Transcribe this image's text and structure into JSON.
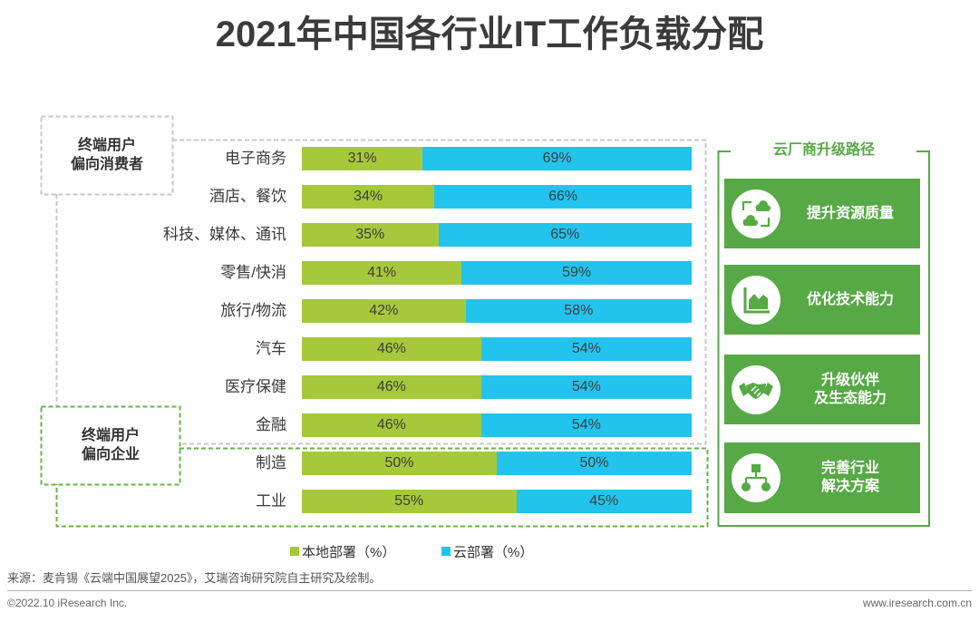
{
  "chart_data": {
    "type": "bar",
    "orientation": "horizontal",
    "stacked": true,
    "title": "2021年中国各行业IT工作负载分配",
    "categories": [
      "电子商务",
      "酒店、餐饮",
      "科技、媒体、通讯",
      "零售/快消",
      "旅行/物流",
      "汽车",
      "医疗保健",
      "金融",
      "制造",
      "工业"
    ],
    "series": [
      {
        "name": "本地部署（%）",
        "color": "#a5c93a",
        "values": [
          31,
          34,
          35,
          41,
          42,
          46,
          46,
          46,
          50,
          55
        ]
      },
      {
        "name": "云部署（%）",
        "color": "#22c4ee",
        "values": [
          69,
          66,
          65,
          59,
          58,
          54,
          54,
          54,
          50,
          45
        ]
      }
    ],
    "value_suffix": "%",
    "xlim": [
      0,
      100
    ],
    "grid": false,
    "legend_position": "bottom",
    "groups": [
      {
        "lines": [
          "终端用户",
          "偏向消费者"
        ],
        "color": "#c8c8c8"
      },
      {
        "lines": [
          "终端用户",
          "偏向企业"
        ],
        "color": "#66b548"
      }
    ]
  },
  "panel": {
    "title": "云厂商升级路径",
    "color": "#56a944",
    "items": [
      {
        "icon": "cloud-sync-icon",
        "lines": [
          "提升资源质量"
        ]
      },
      {
        "icon": "area-chart-icon",
        "lines": [
          "优化技术能力"
        ]
      },
      {
        "icon": "handshake-icon",
        "lines": [
          "升级伙伴",
          "及生态能力"
        ]
      },
      {
        "icon": "flowchart-icon",
        "lines": [
          "完善行业",
          "解决方案"
        ]
      }
    ]
  },
  "source": "来源：麦肯锡《云端中国展望2025》，艾瑞咨询研究院自主研究及绘制。",
  "footer": {
    "copyright": "©2022.10 iResearch Inc.",
    "website": "www.iresearch.com.cn"
  }
}
